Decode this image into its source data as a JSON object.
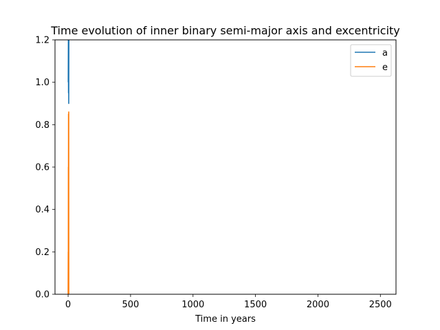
{
  "chart_data": {
    "type": "line",
    "title": "Time evolution of inner binary semi-major axis and excentricity",
    "xlabel": "Time in years",
    "ylabel": "",
    "xlim": [
      -105,
      2625
    ],
    "ylim": [
      0,
      1.2
    ],
    "xticks": [
      0,
      500,
      1000,
      1500,
      2000,
      2500
    ],
    "yticks": [
      0.0,
      0.2,
      0.4,
      0.6,
      0.8,
      1.0,
      1.2
    ],
    "grid": false,
    "legend_position": "top-right",
    "series": [
      {
        "name": "a",
        "color": "#1f77b4",
        "points": [
          [
            0,
            1.0
          ],
          [
            1,
            1.0
          ],
          [
            2,
            1.2
          ],
          [
            3,
            0.95
          ],
          [
            4,
            1.2
          ],
          [
            5,
            0.9
          ],
          [
            6,
            1.2
          ]
        ]
      },
      {
        "name": "e",
        "color": "#ff7f0e",
        "points": [
          [
            0,
            0.0
          ],
          [
            1,
            0.2
          ],
          [
            1.5,
            0.0
          ],
          [
            2,
            0.6
          ],
          [
            2.5,
            0.1
          ],
          [
            3,
            0.85
          ],
          [
            3.5,
            0.0
          ],
          [
            4,
            0.72
          ],
          [
            4.5,
            0.2
          ],
          [
            5,
            0.86
          ],
          [
            5.5,
            0.0
          ],
          [
            6,
            0.0
          ]
        ]
      }
    ]
  }
}
